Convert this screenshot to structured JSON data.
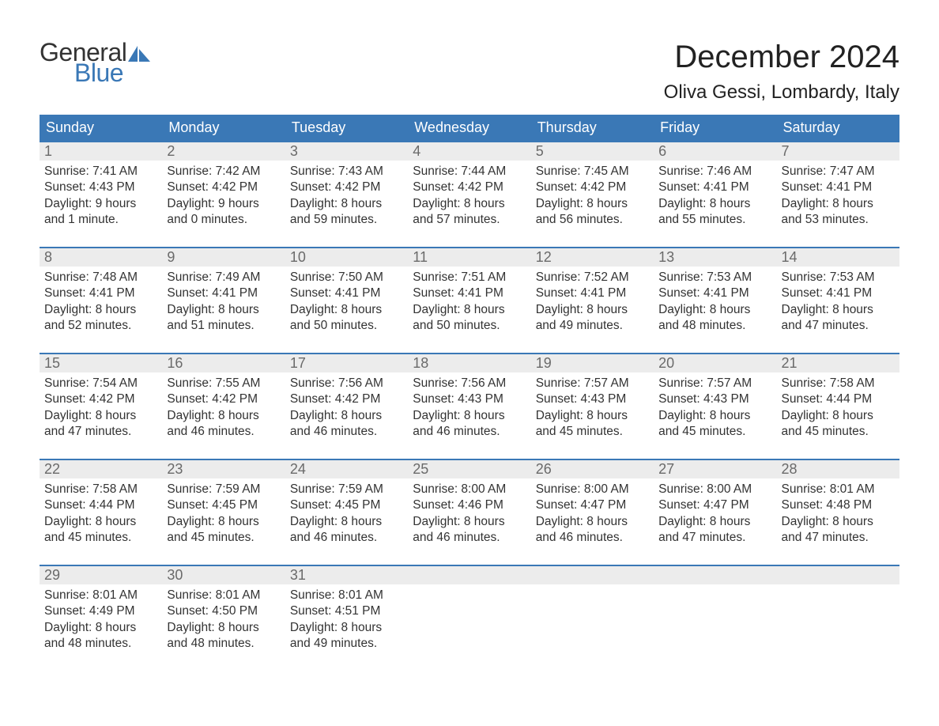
{
  "brand": {
    "word1": "General",
    "word2": "Blue",
    "word1_color": "#333333",
    "word2_color": "#3a78b6",
    "icon_color": "#3a78b6"
  },
  "header": {
    "month_title": "December 2024",
    "location": "Oliva Gessi, Lombardy, Italy"
  },
  "style": {
    "header_bg": "#3a78b6",
    "header_text": "#ffffff",
    "daynum_bg": "#ececec",
    "daynum_color": "#6a6a6a",
    "row_border": "#3a78b6",
    "body_text": "#333333",
    "page_bg": "#ffffff",
    "title_fontsize": 40,
    "location_fontsize": 24,
    "weekday_fontsize": 18,
    "body_fontsize": 15.5
  },
  "weekdays": [
    "Sunday",
    "Monday",
    "Tuesday",
    "Wednesday",
    "Thursday",
    "Friday",
    "Saturday"
  ],
  "labels": {
    "sunrise": "Sunrise:",
    "sunset": "Sunset:",
    "daylight": "Daylight:"
  },
  "weeks": [
    [
      {
        "n": "1",
        "sunrise": "7:41 AM",
        "sunset": "4:43 PM",
        "daylight": "9 hours and 1 minute."
      },
      {
        "n": "2",
        "sunrise": "7:42 AM",
        "sunset": "4:42 PM",
        "daylight": "9 hours and 0 minutes."
      },
      {
        "n": "3",
        "sunrise": "7:43 AM",
        "sunset": "4:42 PM",
        "daylight": "8 hours and 59 minutes."
      },
      {
        "n": "4",
        "sunrise": "7:44 AM",
        "sunset": "4:42 PM",
        "daylight": "8 hours and 57 minutes."
      },
      {
        "n": "5",
        "sunrise": "7:45 AM",
        "sunset": "4:42 PM",
        "daylight": "8 hours and 56 minutes."
      },
      {
        "n": "6",
        "sunrise": "7:46 AM",
        "sunset": "4:41 PM",
        "daylight": "8 hours and 55 minutes."
      },
      {
        "n": "7",
        "sunrise": "7:47 AM",
        "sunset": "4:41 PM",
        "daylight": "8 hours and 53 minutes."
      }
    ],
    [
      {
        "n": "8",
        "sunrise": "7:48 AM",
        "sunset": "4:41 PM",
        "daylight": "8 hours and 52 minutes."
      },
      {
        "n": "9",
        "sunrise": "7:49 AM",
        "sunset": "4:41 PM",
        "daylight": "8 hours and 51 minutes."
      },
      {
        "n": "10",
        "sunrise": "7:50 AM",
        "sunset": "4:41 PM",
        "daylight": "8 hours and 50 minutes."
      },
      {
        "n": "11",
        "sunrise": "7:51 AM",
        "sunset": "4:41 PM",
        "daylight": "8 hours and 50 minutes."
      },
      {
        "n": "12",
        "sunrise": "7:52 AM",
        "sunset": "4:41 PM",
        "daylight": "8 hours and 49 minutes."
      },
      {
        "n": "13",
        "sunrise": "7:53 AM",
        "sunset": "4:41 PM",
        "daylight": "8 hours and 48 minutes."
      },
      {
        "n": "14",
        "sunrise": "7:53 AM",
        "sunset": "4:41 PM",
        "daylight": "8 hours and 47 minutes."
      }
    ],
    [
      {
        "n": "15",
        "sunrise": "7:54 AM",
        "sunset": "4:42 PM",
        "daylight": "8 hours and 47 minutes."
      },
      {
        "n": "16",
        "sunrise": "7:55 AM",
        "sunset": "4:42 PM",
        "daylight": "8 hours and 46 minutes."
      },
      {
        "n": "17",
        "sunrise": "7:56 AM",
        "sunset": "4:42 PM",
        "daylight": "8 hours and 46 minutes."
      },
      {
        "n": "18",
        "sunrise": "7:56 AM",
        "sunset": "4:43 PM",
        "daylight": "8 hours and 46 minutes."
      },
      {
        "n": "19",
        "sunrise": "7:57 AM",
        "sunset": "4:43 PM",
        "daylight": "8 hours and 45 minutes."
      },
      {
        "n": "20",
        "sunrise": "7:57 AM",
        "sunset": "4:43 PM",
        "daylight": "8 hours and 45 minutes."
      },
      {
        "n": "21",
        "sunrise": "7:58 AM",
        "sunset": "4:44 PM",
        "daylight": "8 hours and 45 minutes."
      }
    ],
    [
      {
        "n": "22",
        "sunrise": "7:58 AM",
        "sunset": "4:44 PM",
        "daylight": "8 hours and 45 minutes."
      },
      {
        "n": "23",
        "sunrise": "7:59 AM",
        "sunset": "4:45 PM",
        "daylight": "8 hours and 45 minutes."
      },
      {
        "n": "24",
        "sunrise": "7:59 AM",
        "sunset": "4:45 PM",
        "daylight": "8 hours and 46 minutes."
      },
      {
        "n": "25",
        "sunrise": "8:00 AM",
        "sunset": "4:46 PM",
        "daylight": "8 hours and 46 minutes."
      },
      {
        "n": "26",
        "sunrise": "8:00 AM",
        "sunset": "4:47 PM",
        "daylight": "8 hours and 46 minutes."
      },
      {
        "n": "27",
        "sunrise": "8:00 AM",
        "sunset": "4:47 PM",
        "daylight": "8 hours and 47 minutes."
      },
      {
        "n": "28",
        "sunrise": "8:01 AM",
        "sunset": "4:48 PM",
        "daylight": "8 hours and 47 minutes."
      }
    ],
    [
      {
        "n": "29",
        "sunrise": "8:01 AM",
        "sunset": "4:49 PM",
        "daylight": "8 hours and 48 minutes."
      },
      {
        "n": "30",
        "sunrise": "8:01 AM",
        "sunset": "4:50 PM",
        "daylight": "8 hours and 48 minutes."
      },
      {
        "n": "31",
        "sunrise": "8:01 AM",
        "sunset": "4:51 PM",
        "daylight": "8 hours and 49 minutes."
      },
      {
        "empty": true
      },
      {
        "empty": true
      },
      {
        "empty": true
      },
      {
        "empty": true
      }
    ]
  ]
}
